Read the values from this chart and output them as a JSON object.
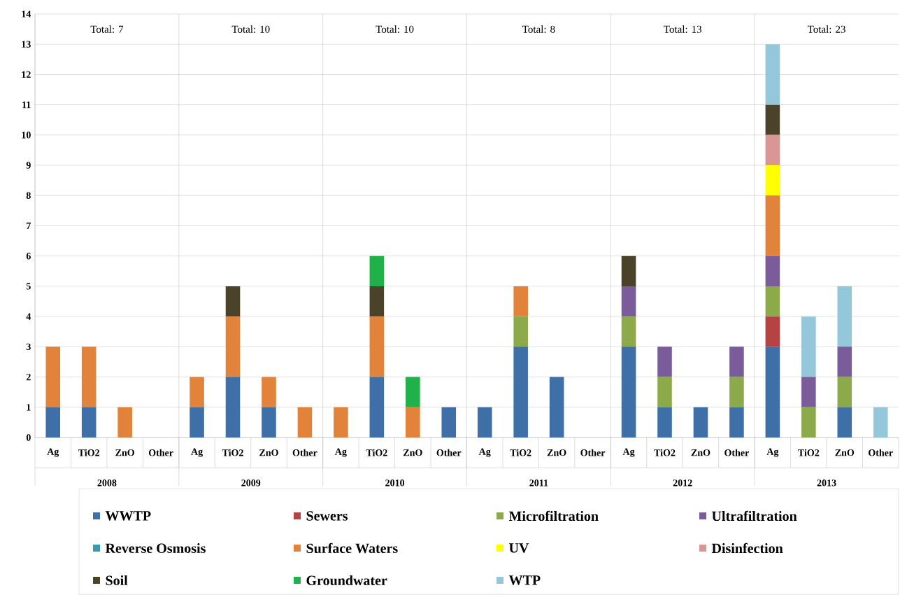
{
  "chart_data": {
    "type": "bar",
    "stacked": true,
    "categories": [
      "Ag",
      "TiO2",
      "ZnO",
      "Other",
      "Ag",
      "TiO2",
      "ZnO",
      "Other",
      "Ag",
      "TiO2",
      "ZnO",
      "Other",
      "Ag",
      "TiO2",
      "ZnO",
      "Other",
      "Ag",
      "TiO2",
      "ZnO",
      "Other",
      "Ag",
      "TiO2",
      "ZnO",
      "Other"
    ],
    "series": [
      {
        "name": "WWTP",
        "color": "#3e6fa7",
        "values": [
          1,
          1,
          0,
          0,
          1,
          2,
          1,
          0,
          0,
          2,
          0,
          1,
          1,
          3,
          2,
          0,
          3,
          1,
          1,
          1,
          3,
          0,
          1,
          0
        ]
      },
      {
        "name": "Sewers",
        "color": "#b54343",
        "values": [
          0,
          0,
          0,
          0,
          0,
          0,
          0,
          0,
          0,
          0,
          0,
          0,
          0,
          0,
          0,
          0,
          0,
          0,
          0,
          0,
          1,
          0,
          0,
          0
        ]
      },
      {
        "name": "Microfiltration",
        "color": "#8caa4a",
        "values": [
          0,
          0,
          0,
          0,
          0,
          0,
          0,
          0,
          0,
          0,
          0,
          0,
          0,
          1,
          0,
          0,
          1,
          1,
          0,
          1,
          1,
          1,
          1,
          0
        ]
      },
      {
        "name": "Ultrafiltration",
        "color": "#7b5c9b",
        "values": [
          0,
          0,
          0,
          0,
          0,
          0,
          0,
          0,
          0,
          0,
          0,
          0,
          0,
          0,
          0,
          0,
          1,
          1,
          0,
          1,
          1,
          1,
          1,
          0
        ]
      },
      {
        "name": "Reverse Osmosis",
        "color": "#3a99b0",
        "values": [
          0,
          0,
          0,
          0,
          0,
          0,
          0,
          0,
          0,
          0,
          0,
          0,
          0,
          0,
          0,
          0,
          0,
          0,
          0,
          0,
          0,
          0,
          0,
          0
        ]
      },
      {
        "name": "Surface Waters",
        "color": "#e1833a",
        "values": [
          2,
          2,
          1,
          0,
          1,
          2,
          1,
          1,
          1,
          2,
          1,
          0,
          0,
          1,
          0,
          0,
          0,
          0,
          0,
          0,
          2,
          0,
          0,
          0
        ]
      },
      {
        "name": "UV",
        "color": "#ffff00",
        "values": [
          0,
          0,
          0,
          0,
          0,
          0,
          0,
          0,
          0,
          0,
          0,
          0,
          0,
          0,
          0,
          0,
          0,
          0,
          0,
          0,
          1,
          0,
          0,
          0
        ]
      },
      {
        "name": "Disinfection",
        "color": "#d99694",
        "values": [
          0,
          0,
          0,
          0,
          0,
          0,
          0,
          0,
          0,
          0,
          0,
          0,
          0,
          0,
          0,
          0,
          0,
          0,
          0,
          0,
          1,
          0,
          0,
          0
        ]
      },
      {
        "name": "Soil",
        "color": "#4a4329",
        "values": [
          0,
          0,
          0,
          0,
          0,
          1,
          0,
          0,
          0,
          1,
          0,
          0,
          0,
          0,
          0,
          0,
          1,
          0,
          0,
          0,
          1,
          0,
          0,
          0
        ]
      },
      {
        "name": "Groundwater",
        "color": "#20b14b",
        "values": [
          0,
          0,
          0,
          0,
          0,
          0,
          0,
          0,
          0,
          1,
          1,
          0,
          0,
          0,
          0,
          0,
          0,
          0,
          0,
          0,
          0,
          0,
          0,
          0
        ]
      },
      {
        "name": "WTP",
        "color": "#93c7d9",
        "values": [
          0,
          0,
          0,
          0,
          0,
          0,
          0,
          0,
          0,
          0,
          0,
          0,
          0,
          0,
          0,
          0,
          0,
          0,
          0,
          0,
          2,
          2,
          2,
          1
        ]
      }
    ],
    "ylim": [
      0,
      14
    ],
    "yticks": [
      0,
      1,
      2,
      3,
      4,
      5,
      6,
      7,
      8,
      9,
      10,
      11,
      12,
      13,
      14
    ],
    "grid": "y",
    "legend": "bottom",
    "annotations": [
      "Total: 7",
      "2008",
      "Total: 10",
      "2009",
      "Total: 10",
      "2010",
      "Total: 8",
      "2011",
      "Total: 13",
      "2012",
      "Total: 23",
      "2013"
    ]
  }
}
